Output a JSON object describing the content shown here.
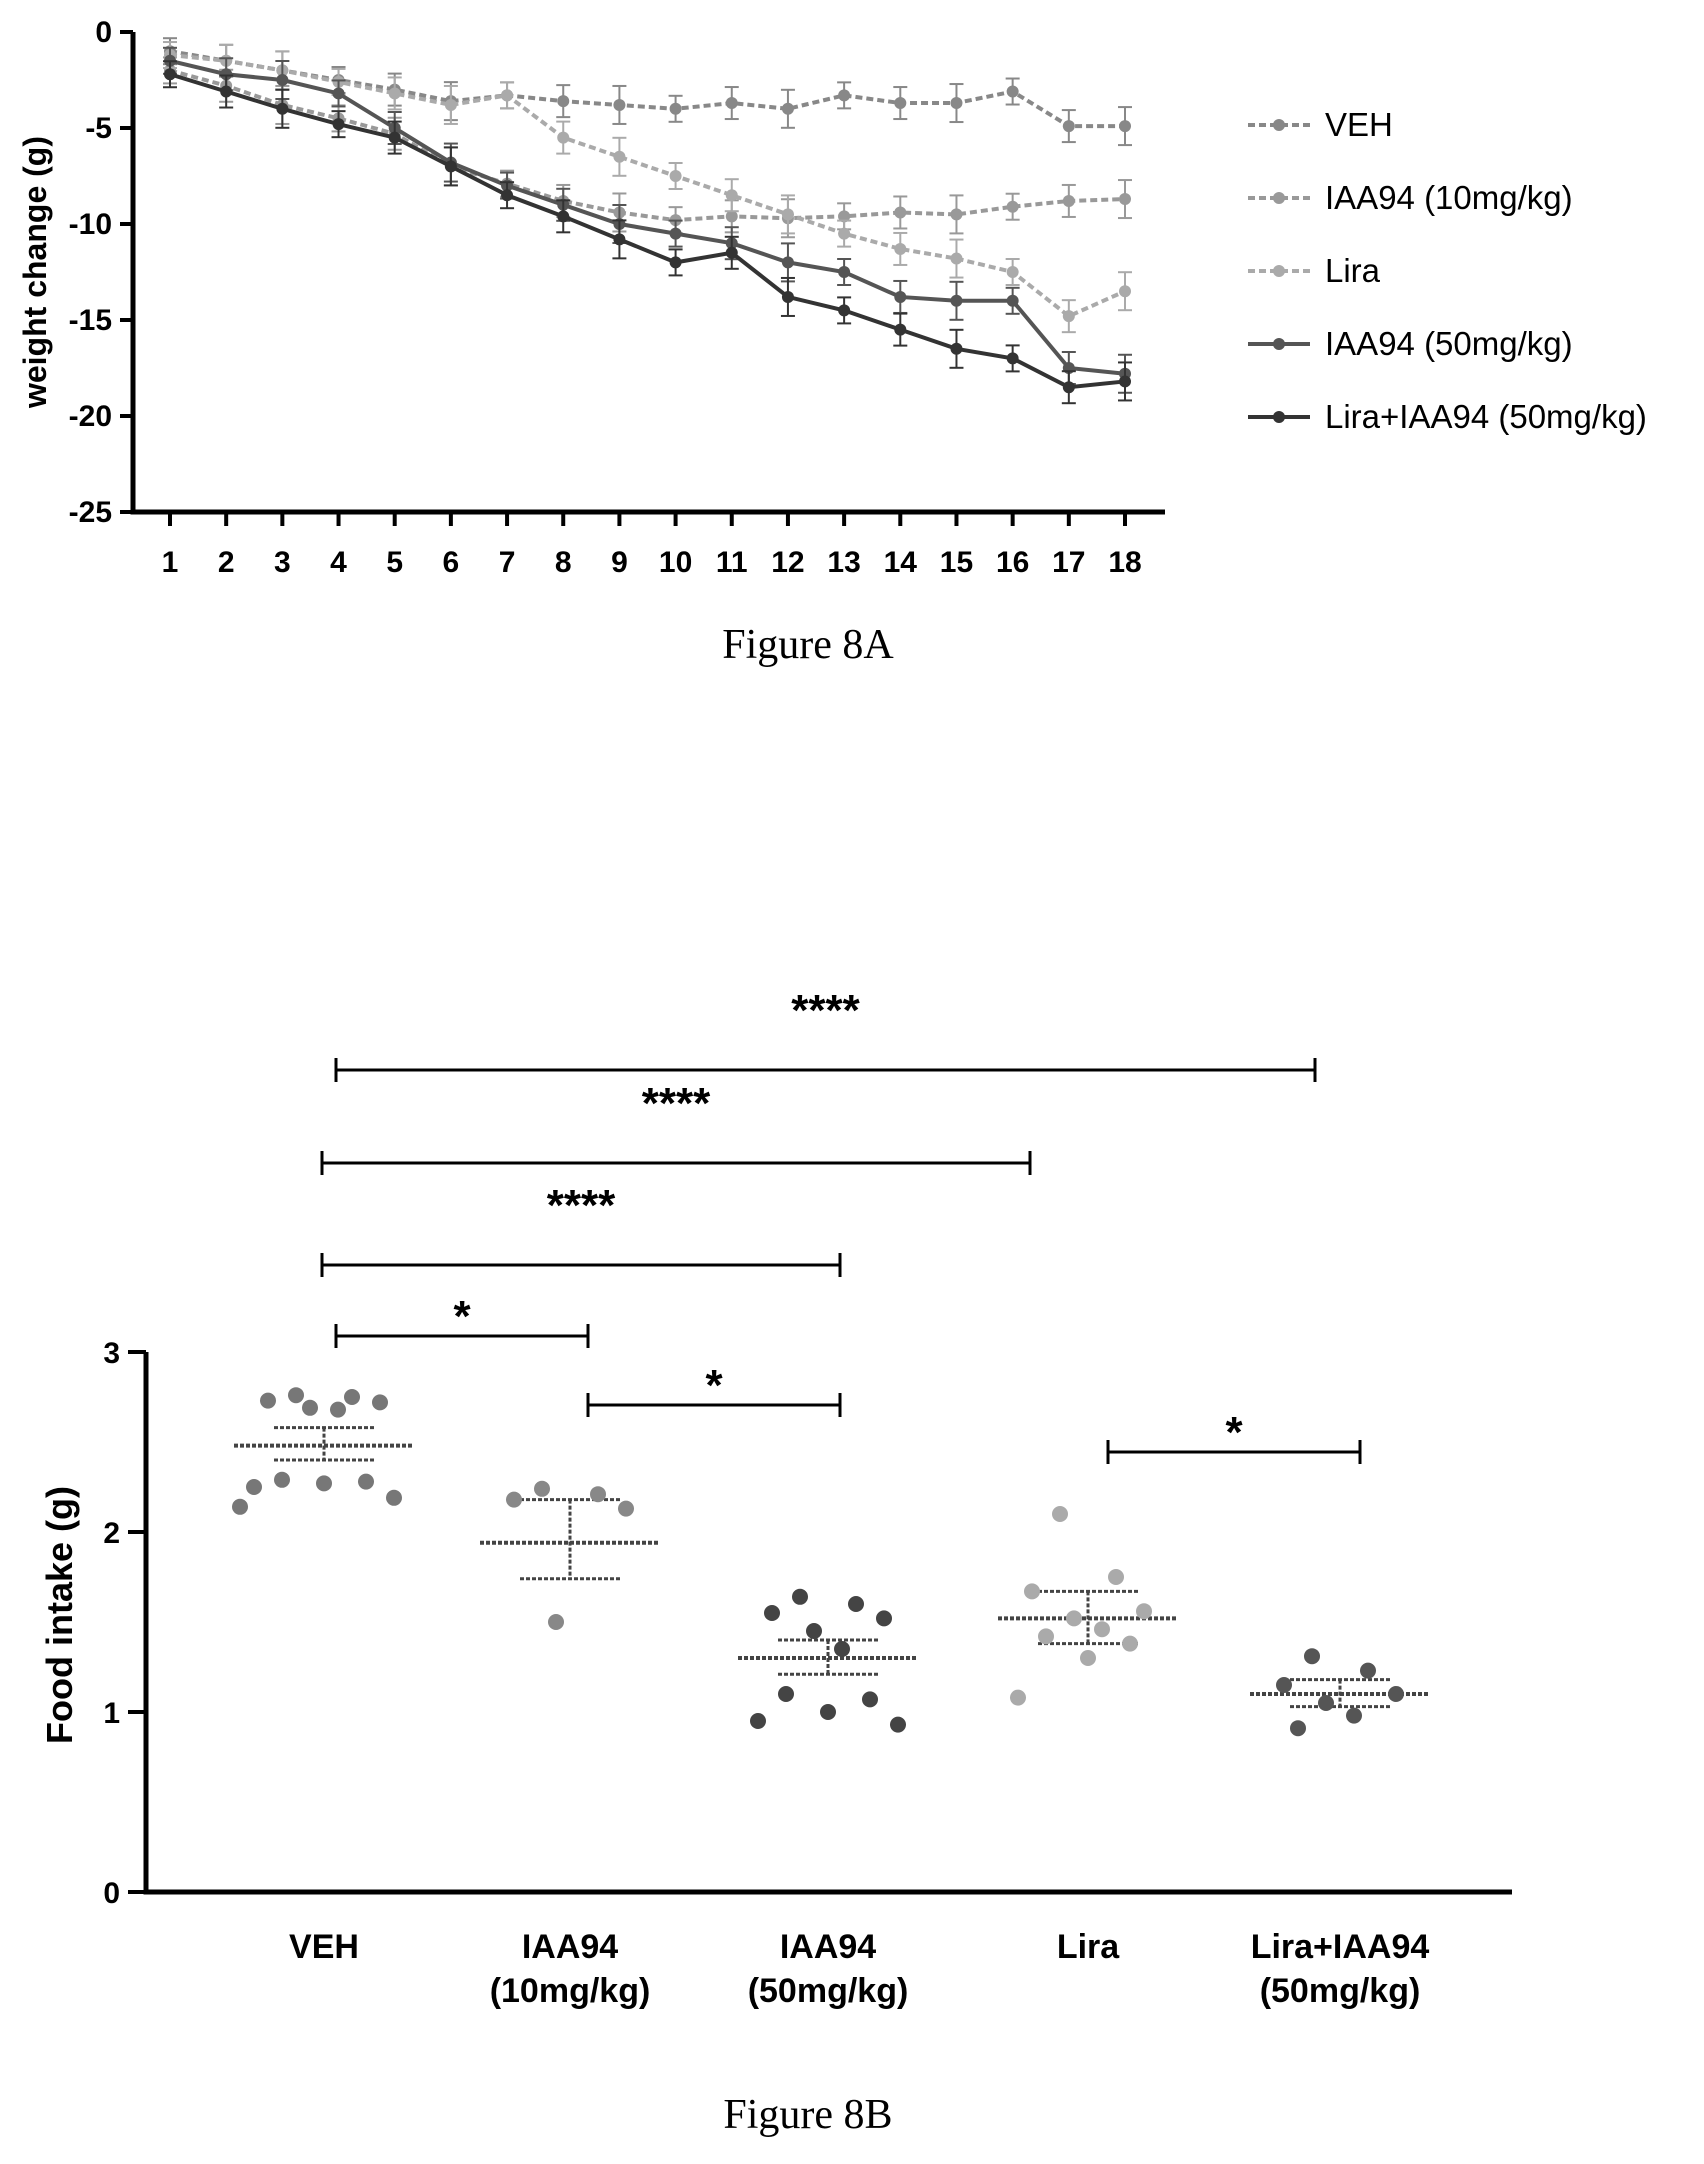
{
  "chart_data": [
    {
      "type": "line",
      "ylabel": "weight change (g)",
      "xlim": [
        1,
        18
      ],
      "ylim": [
        -25,
        0
      ],
      "x": [
        1,
        2,
        3,
        4,
        5,
        6,
        7,
        8,
        9,
        10,
        11,
        12,
        13,
        14,
        15,
        16,
        17,
        18
      ],
      "x_ticks": [
        "1",
        "2",
        "3",
        "4",
        "5",
        "6",
        "7",
        "8",
        "9",
        "10",
        "11",
        "12",
        "13",
        "14",
        "15",
        "16",
        "17",
        "18"
      ],
      "y_ticks": [
        "0",
        "-5",
        "-10",
        "-15",
        "-20",
        "-25"
      ],
      "legend_position": "right",
      "series": [
        {
          "name": "VEH",
          "color": "#888888",
          "values": [
            -1.0,
            -1.5,
            -2.0,
            -2.5,
            -3.0,
            -3.6,
            -3.3,
            -3.6,
            -3.8,
            -4.0,
            -3.7,
            -4.0,
            -3.3,
            -3.7,
            -3.7,
            -3.1,
            -4.9,
            -4.9
          ]
        },
        {
          "name": "IAA94 (10mg/kg)",
          "color": "#999999",
          "values": [
            -2.0,
            -2.8,
            -3.8,
            -4.5,
            -5.3,
            -7.0,
            -7.9,
            -8.8,
            -9.4,
            -9.8,
            -9.6,
            -9.7,
            -9.6,
            -9.4,
            -9.5,
            -9.1,
            -8.8,
            -8.7
          ]
        },
        {
          "name": "Lira",
          "color": "#aaaaaa",
          "values": [
            -1.2,
            -1.5,
            -2.0,
            -2.6,
            -3.2,
            -3.8,
            -3.3,
            -5.5,
            -6.5,
            -7.5,
            -8.5,
            -9.5,
            -10.5,
            -11.3,
            -11.8,
            -12.5,
            -14.8,
            -13.5
          ]
        },
        {
          "name": "IAA94 (50mg/kg)",
          "color": "#555555",
          "values": [
            -1.5,
            -2.2,
            -2.5,
            -3.2,
            -5.0,
            -6.8,
            -8.0,
            -9.0,
            -10.0,
            -10.5,
            -11.0,
            -12.0,
            -12.5,
            -13.8,
            -14.0,
            -14.0,
            -17.5,
            -17.8
          ]
        },
        {
          "name": "Lira+IAA94 (50mg/kg)",
          "color": "#333333",
          "values": [
            -2.2,
            -3.1,
            -4.0,
            -4.8,
            -5.5,
            -7.0,
            -8.5,
            -9.6,
            -10.8,
            -12.0,
            -11.5,
            -13.8,
            -14.5,
            -15.5,
            -16.5,
            -17.0,
            -18.5,
            -18.2
          ]
        }
      ]
    },
    {
      "type": "scatter",
      "ylabel": "Food intake (g)",
      "ylim": [
        0,
        3
      ],
      "y_ticks": [
        "0",
        "1",
        "2",
        "3"
      ],
      "categories": [
        "VEH",
        "IAA94\n(10mg/kg)",
        "IAA94\n(50mg/kg)",
        "Lira",
        "Lira+IAA94\n(50mg/kg)"
      ],
      "groups": [
        {
          "mean": 2.48,
          "sem_upper": 2.58,
          "sem_lower": 2.4,
          "points": [
            2.76,
            2.75,
            2.73,
            2.72,
            2.69,
            2.68,
            2.29,
            2.28,
            2.27,
            2.25,
            2.19,
            2.14
          ]
        },
        {
          "mean": 1.94,
          "sem_upper": 2.18,
          "sem_lower": 1.74,
          "points": [
            2.24,
            2.21,
            2.18,
            2.13,
            1.5
          ]
        },
        {
          "mean": 1.3,
          "sem_upper": 1.4,
          "sem_lower": 1.21,
          "points": [
            1.64,
            1.6,
            1.55,
            1.52,
            1.45,
            1.35,
            1.1,
            1.07,
            1.0,
            0.95,
            0.93
          ]
        },
        {
          "mean": 1.52,
          "sem_upper": 1.67,
          "sem_lower": 1.38,
          "points": [
            2.1,
            1.75,
            1.67,
            1.56,
            1.52,
            1.46,
            1.42,
            1.38,
            1.3,
            1.08
          ]
        },
        {
          "mean": 1.1,
          "sem_upper": 1.18,
          "sem_lower": 1.03,
          "points": [
            1.31,
            1.23,
            1.15,
            1.1,
            1.05,
            0.98,
            0.91
          ]
        }
      ],
      "significance": [
        {
          "from": 0,
          "to": 4,
          "label": "****"
        },
        {
          "from": 0,
          "to": 3,
          "label": "****"
        },
        {
          "from": 0,
          "to": 2,
          "label": "****"
        },
        {
          "from": 0,
          "to": 1,
          "label": "*"
        },
        {
          "from": 1,
          "to": 2,
          "label": "*"
        },
        {
          "from": 3,
          "to": 4,
          "label": "*"
        }
      ]
    }
  ],
  "captions": {
    "a": "Figure 8A",
    "b": "Figure 8B"
  }
}
